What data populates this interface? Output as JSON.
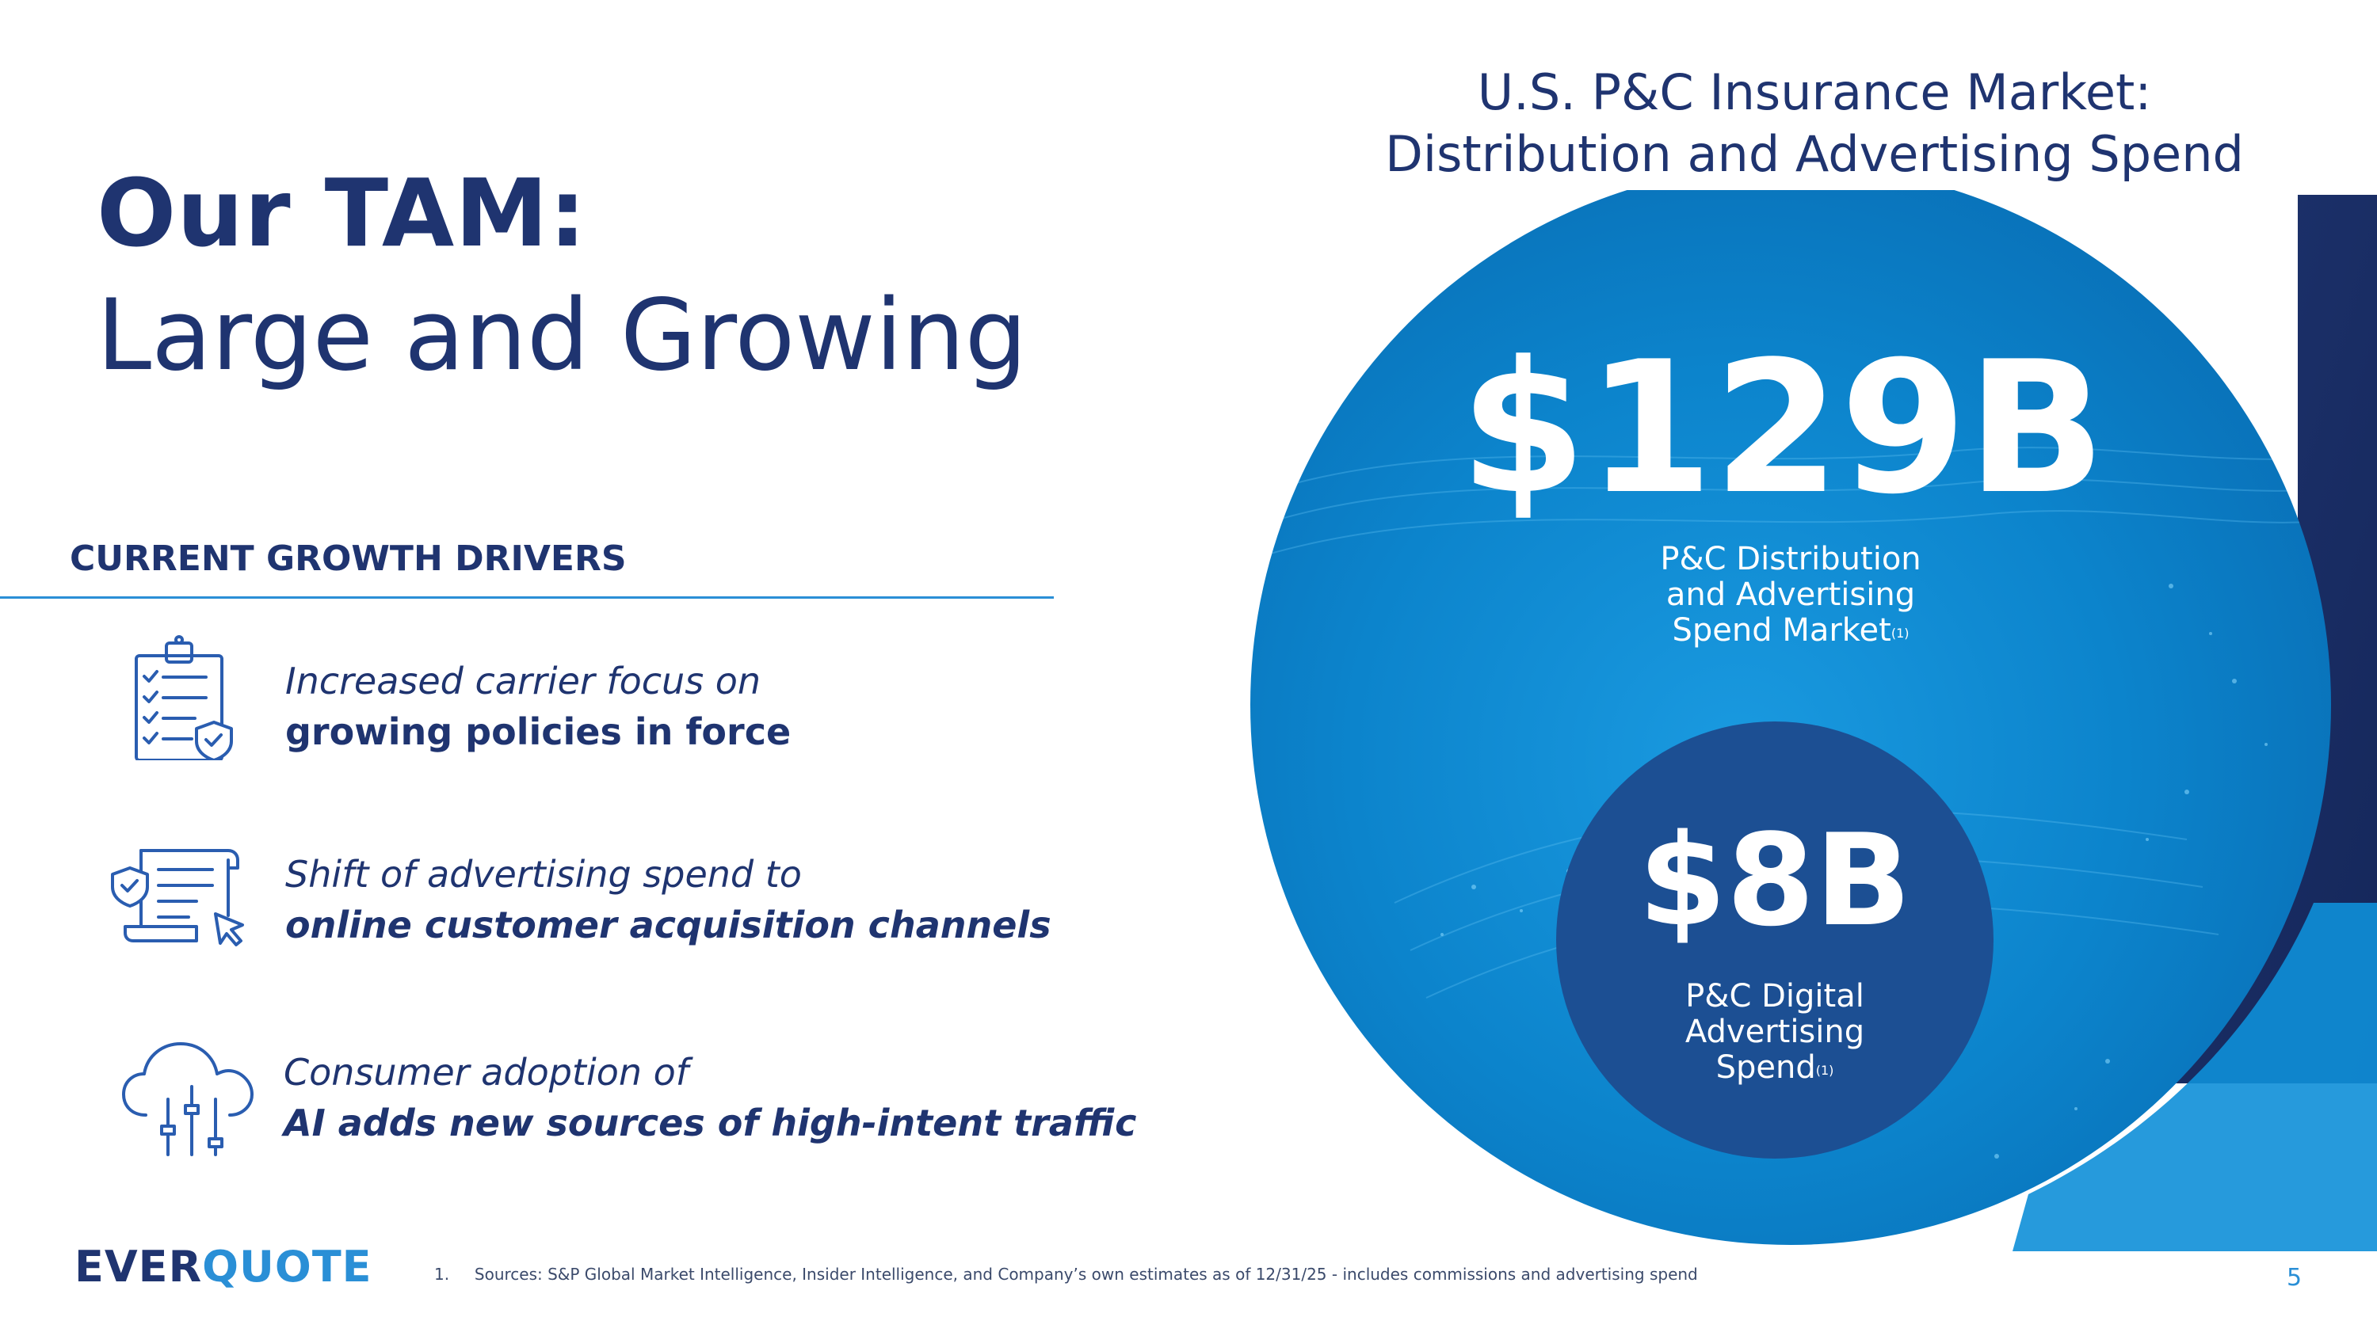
{
  "title": {
    "strong": "Our TAM:",
    "light": "Large and Growing"
  },
  "drivers": {
    "heading": "CURRENT GROWTH DRIVERS",
    "items": [
      {
        "icon": "clipboard-checklist-shield-icon",
        "line1": "Increased carrier focus on",
        "line2": "growing policies in force"
      },
      {
        "icon": "document-shield-cursor-icon",
        "line1": "Shift of advertising spend to",
        "line2": "online customer acquisition channels"
      },
      {
        "icon": "cloud-sliders-icon",
        "line1": "Consumer adoption of",
        "line2": "AI adds new sources of high-intent traffic"
      }
    ]
  },
  "market": {
    "heading_line1": "U.S. P&C Insurance Market:",
    "heading_line2": "Distribution and Advertising Spend",
    "outer": {
      "value": "$129B",
      "label_line1": "P&C Distribution",
      "label_line2": "and Advertising",
      "label_line3": "Spend Market",
      "footnote_marker": "(1)"
    },
    "inner": {
      "value": "$8B",
      "label_line1": "P&C Digital",
      "label_line2": "Advertising",
      "label_line3": "Spend",
      "footnote_marker": "(1)"
    }
  },
  "colors": {
    "navy": "#1f3470",
    "accent_blue": "#2a8fd6",
    "outer_circle": "#0b7fc7",
    "inner_circle": "#1c4f93",
    "corner_block": "#1b2d63"
  },
  "logo": {
    "part1": "EVER",
    "part2": "QUOTE"
  },
  "footnote": {
    "number": "1.",
    "text": "Sources: S&P Global Market Intelligence, Insider Intelligence, and Company’s own estimates as of 12/31/25 - includes commissions and advertising spend"
  },
  "page_number": "5"
}
